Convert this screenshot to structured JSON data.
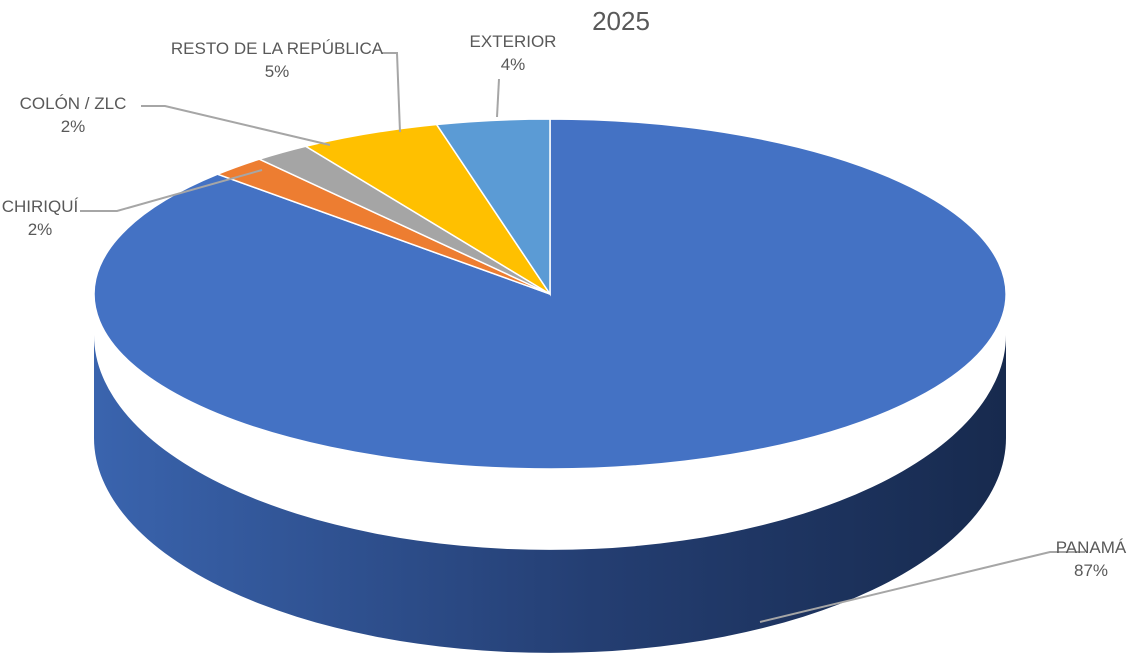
{
  "chart_data": {
    "type": "pie",
    "title": "2025",
    "three_d": true,
    "slices": [
      {
        "label": "PANAMÁ",
        "value": 87,
        "value_label": "87%",
        "color": "#4472C4"
      },
      {
        "label": "CHIRIQUÍ",
        "value": 2,
        "value_label": "2%",
        "color": "#ED7D31"
      },
      {
        "label": "COLÓN / ZLC",
        "value": 2,
        "value_label": "2%",
        "color": "#A5A5A5"
      },
      {
        "label": "RESTO DE LA REPÚBLICA",
        "value": 5,
        "value_label": "5%",
        "color": "#FFC000"
      },
      {
        "label": "EXTERIOR",
        "value": 4,
        "value_label": "4%",
        "color": "#5B9BD5"
      }
    ]
  }
}
